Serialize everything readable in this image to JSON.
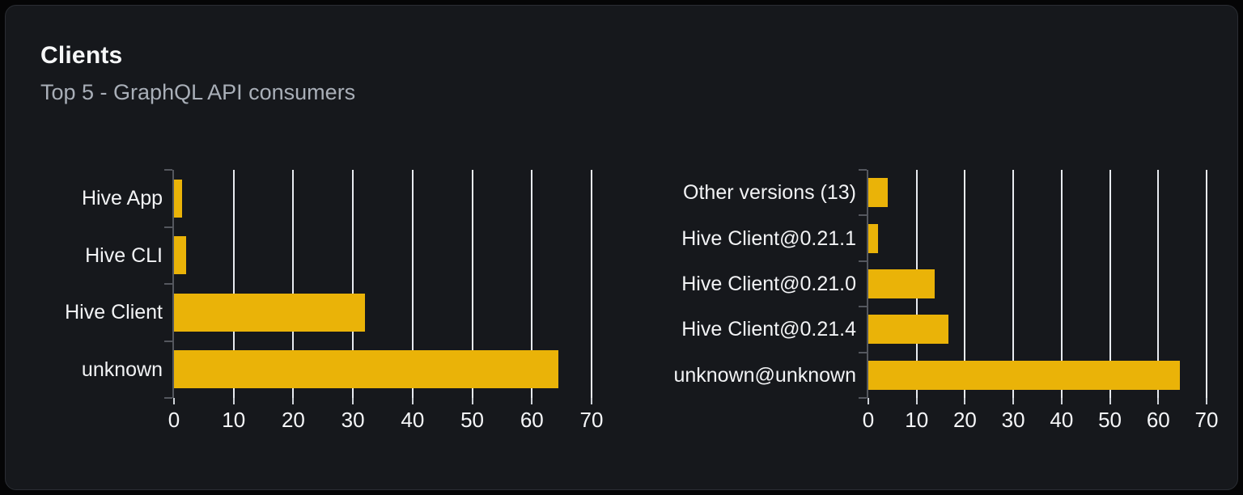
{
  "card": {
    "title": "Clients",
    "subtitle": "Top 5 - GraphQL API consumers"
  },
  "chart_data": [
    {
      "type": "bar",
      "orientation": "horizontal",
      "name": "clients-top5",
      "categories": [
        "Hive App",
        "Hive CLI",
        "Hive Client",
        "unknown"
      ],
      "values": [
        1.4,
        2,
        32,
        64.4
      ],
      "x_ticks": [
        0,
        10,
        20,
        30,
        40,
        50,
        60,
        70
      ],
      "xlim": [
        0,
        70
      ],
      "xlabel": "",
      "ylabel": "",
      "grid": true,
      "legend": false,
      "bar_color": "#eab308"
    },
    {
      "type": "bar",
      "orientation": "horizontal",
      "name": "client-versions-top5",
      "categories": [
        "Other versions (13)",
        "Hive Client@0.21.1",
        "Hive Client@0.21.0",
        "Hive Client@0.21.4",
        "unknown@unknown"
      ],
      "values": [
        4,
        2,
        13.8,
        16.5,
        64.4
      ],
      "x_ticks": [
        0,
        10,
        20,
        30,
        40,
        50,
        60,
        70
      ],
      "xlim": [
        0,
        70
      ],
      "xlabel": "",
      "ylabel": "",
      "grid": true,
      "legend": false,
      "bar_color": "#eab308"
    }
  ],
  "colors": {
    "page_bg": "#050506",
    "card_bg": "#16181c",
    "border": "#2a2d33",
    "title": "#f6f7f8",
    "subtitle": "#a9afb8",
    "bar": "#eab308",
    "grid": "#e8ebf0",
    "axis": "#54575e",
    "xstub": "#cfd3d9",
    "tick_label": "#f5f6f8",
    "category_label": "#f2f3f5"
  }
}
